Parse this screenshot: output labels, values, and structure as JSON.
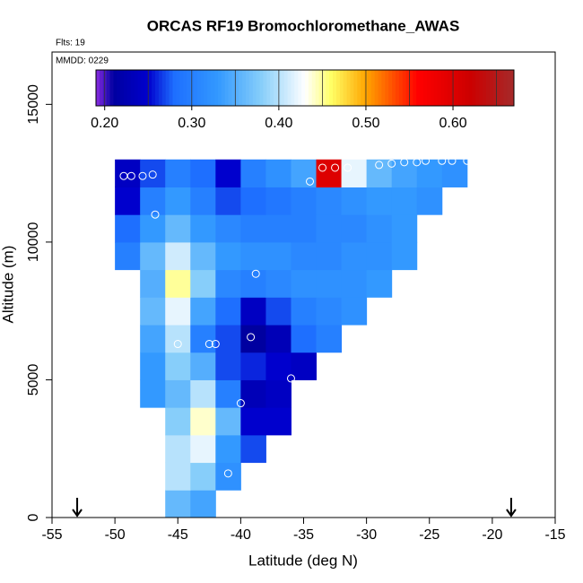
{
  "chart_data": {
    "type": "heatmap",
    "title": "ORCAS RF19 Bromochloromethane_AWAS",
    "flights_note": "Flts: 19",
    "date_note": "MMDD: 0229",
    "x_label": "Latitude (deg N)",
    "y_label": "Altitude (m)",
    "xlim": [
      -55,
      -15
    ],
    "ylim": [
      0,
      16900
    ],
    "xticks": [
      -55,
      -50,
      -45,
      -40,
      -35,
      -30,
      -25,
      -20,
      -15
    ],
    "yticks": [
      0,
      5000,
      10000,
      15000
    ],
    "colorbar_lim": [
      0.19,
      0.67
    ],
    "colorbar_ticks": [
      {
        "value": 0.2,
        "label": "0.20"
      },
      {
        "value": 0.3,
        "label": "0.30"
      },
      {
        "value": 0.4,
        "label": "0.40"
      },
      {
        "value": 0.5,
        "label": "0.50"
      },
      {
        "value": 0.6,
        "label": "0.60"
      }
    ],
    "colorbar_breaks": [
      0.2,
      0.25,
      0.3,
      0.35,
      0.4,
      0.45,
      0.5,
      0.55,
      0.6,
      0.65
    ],
    "colorscale": [
      [
        0.19,
        "#8a2be2"
      ],
      [
        0.21,
        "#0000a0"
      ],
      [
        0.25,
        "#0000cd"
      ],
      [
        0.28,
        "#1e6fff"
      ],
      [
        0.33,
        "#3399ff"
      ],
      [
        0.38,
        "#87cefa"
      ],
      [
        0.43,
        "#ffffff"
      ],
      [
        0.46,
        "#ffff66"
      ],
      [
        0.5,
        "#ffa500"
      ],
      [
        0.56,
        "#ff0000"
      ],
      [
        0.62,
        "#cc0000"
      ],
      [
        0.67,
        "#a52a2a"
      ]
    ],
    "field": {
      "x": [
        -49,
        -47,
        -45,
        -43,
        -41,
        -39,
        -37,
        -35,
        -33,
        -31,
        -29,
        -27,
        -25,
        -23
      ],
      "y": [
        500,
        1500,
        2500,
        3500,
        4500,
        5500,
        6500,
        7500,
        8500,
        9500,
        10500,
        11500,
        12500
      ],
      "cell_width": 2,
      "cell_height": 1000,
      "z": [
        [
          null,
          null,
          0.36,
          0.34,
          null,
          null,
          null,
          null,
          null,
          null,
          null,
          null,
          null,
          null
        ],
        [
          null,
          null,
          0.4,
          0.38,
          0.32,
          null,
          null,
          null,
          null,
          null,
          null,
          null,
          null,
          null
        ],
        [
          null,
          null,
          0.4,
          0.42,
          0.33,
          0.27,
          null,
          null,
          null,
          null,
          null,
          null,
          null,
          null
        ],
        [
          null,
          null,
          0.38,
          0.44,
          0.36,
          0.25,
          0.25,
          null,
          null,
          null,
          null,
          null,
          null,
          null
        ],
        [
          null,
          0.33,
          0.36,
          0.4,
          0.3,
          0.23,
          0.24,
          null,
          null,
          null,
          null,
          null,
          null,
          null
        ],
        [
          null,
          0.33,
          0.38,
          0.35,
          0.27,
          0.26,
          0.25,
          0.24,
          null,
          null,
          null,
          null,
          null,
          null
        ],
        [
          null,
          0.34,
          0.4,
          0.3,
          0.27,
          0.21,
          0.23,
          0.28,
          0.3,
          null,
          null,
          null,
          null,
          null
        ],
        [
          null,
          0.36,
          0.42,
          0.34,
          0.28,
          0.24,
          0.27,
          0.3,
          0.31,
          0.32,
          null,
          null,
          null,
          null
        ],
        [
          null,
          0.35,
          0.45,
          0.38,
          0.31,
          0.3,
          0.31,
          0.32,
          0.32,
          0.32,
          0.33,
          null,
          null,
          null
        ],
        [
          0.3,
          0.36,
          0.41,
          0.36,
          0.33,
          0.32,
          0.32,
          0.31,
          0.31,
          0.32,
          0.32,
          0.33,
          null,
          null
        ],
        [
          0.28,
          0.33,
          0.36,
          0.33,
          0.31,
          0.3,
          0.3,
          0.3,
          0.31,
          0.31,
          0.32,
          0.33,
          null,
          null
        ],
        [
          0.25,
          0.3,
          0.33,
          0.3,
          0.27,
          0.28,
          0.29,
          0.3,
          0.31,
          0.32,
          0.33,
          0.33,
          0.32,
          null
        ],
        [
          0.24,
          0.27,
          0.3,
          0.28,
          0.25,
          0.3,
          0.32,
          0.34,
          0.6,
          0.42,
          0.36,
          0.34,
          0.33,
          0.32
        ]
      ]
    },
    "samples": {
      "x": [
        -49.3,
        -48.7,
        -47.8,
        -47,
        -46.8,
        -38.8,
        -45,
        -42.5,
        -42,
        -39.2,
        -36,
        -40,
        -41,
        -34.5,
        -33.5,
        -32.5,
        -31.5,
        -29,
        -28,
        -27,
        -26,
        -25.3,
        -24,
        -23.2,
        -22
      ],
      "y": [
        12400,
        12400,
        12400,
        12450,
        11000,
        8850,
        6300,
        6300,
        6300,
        6550,
        5050,
        4150,
        1600,
        12200,
        12700,
        12700,
        12700,
        12800,
        12850,
        12900,
        12900,
        12950,
        12950,
        12950,
        12950
      ]
    },
    "arrows_x": [
      -53,
      -18.5
    ]
  }
}
